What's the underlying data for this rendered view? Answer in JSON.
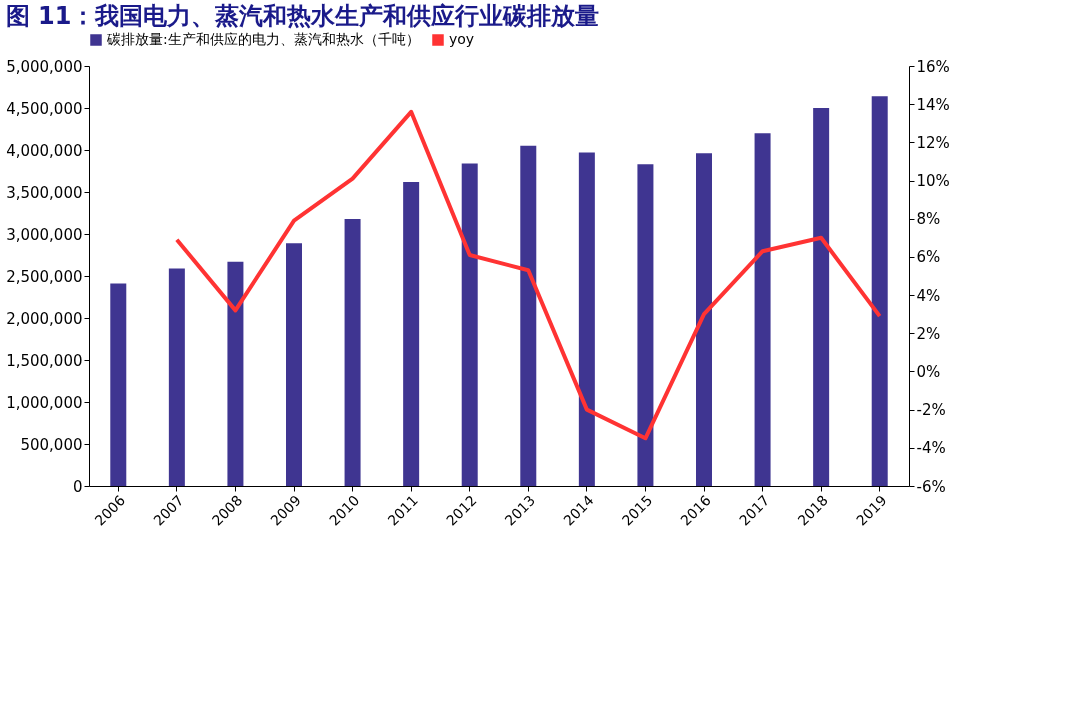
{
  "chart_data": {
    "type": "bar",
    "title": "图 11：我国电力、蒸汽和热水生产和供应行业碳排放量",
    "categories": [
      "2006",
      "2007",
      "2008",
      "2009",
      "2010",
      "2011",
      "2012",
      "2013",
      "2014",
      "2015",
      "2016",
      "2017",
      "2018",
      "2019"
    ],
    "series": [
      {
        "name": "碳排放量:生产和供应的电力、蒸汽和热水（千吨）",
        "color": "#3f3591",
        "values": [
          2410000,
          2590000,
          2670000,
          2890000,
          3180000,
          3620000,
          3840000,
          4050000,
          3970000,
          3830000,
          3960000,
          4200000,
          4500000,
          4640000
        ]
      },
      {
        "name": "yoy",
        "type": "line",
        "axis": "y2",
        "color": "#ff3333",
        "values": [
          null,
          6.9,
          3.2,
          7.9,
          10.1,
          13.6,
          6.1,
          5.3,
          -2.0,
          -3.5,
          3.0,
          6.3,
          7.0,
          2.9
        ]
      }
    ],
    "ylim": [
      0,
      5000000
    ],
    "yticks": [
      0,
      {
        "value": 500000,
        "label": "500,000"
      },
      {
        "value": 1000000,
        "label": "1,000,000"
      },
      {
        "value": 1500000,
        "label": "1,500,000"
      },
      {
        "value": 2000000,
        "label": "2,000,000"
      },
      {
        "value": 2500000,
        "label": "2,500,000"
      },
      {
        "value": 3000000,
        "label": "3,000,000"
      },
      {
        "value": 3500000,
        "label": "3,500,000"
      },
      {
        "value": 4000000,
        "label": "4,000,000"
      },
      {
        "value": 4500000,
        "label": "4,500,000"
      },
      {
        "value": 5000000,
        "label": "5,000,000"
      }
    ],
    "y2lim": [
      -6,
      16
    ],
    "y2ticks": [
      {
        "value": -6,
        "label": "-6%"
      },
      {
        "value": -4,
        "label": "-4%"
      },
      {
        "value": -2,
        "label": "-2%"
      },
      {
        "value": 0,
        "label": "0%"
      },
      {
        "value": 2,
        "label": "2%"
      },
      {
        "value": 4,
        "label": "4%"
      },
      {
        "value": 6,
        "label": "6%"
      },
      {
        "value": 8,
        "label": "8%"
      },
      {
        "value": 10,
        "label": "10%"
      },
      {
        "value": 12,
        "label": "12%"
      },
      {
        "value": 14,
        "label": "14%"
      },
      {
        "value": 16,
        "label": "16%"
      }
    ],
    "legend": "top",
    "grid": false,
    "marker": "none"
  }
}
